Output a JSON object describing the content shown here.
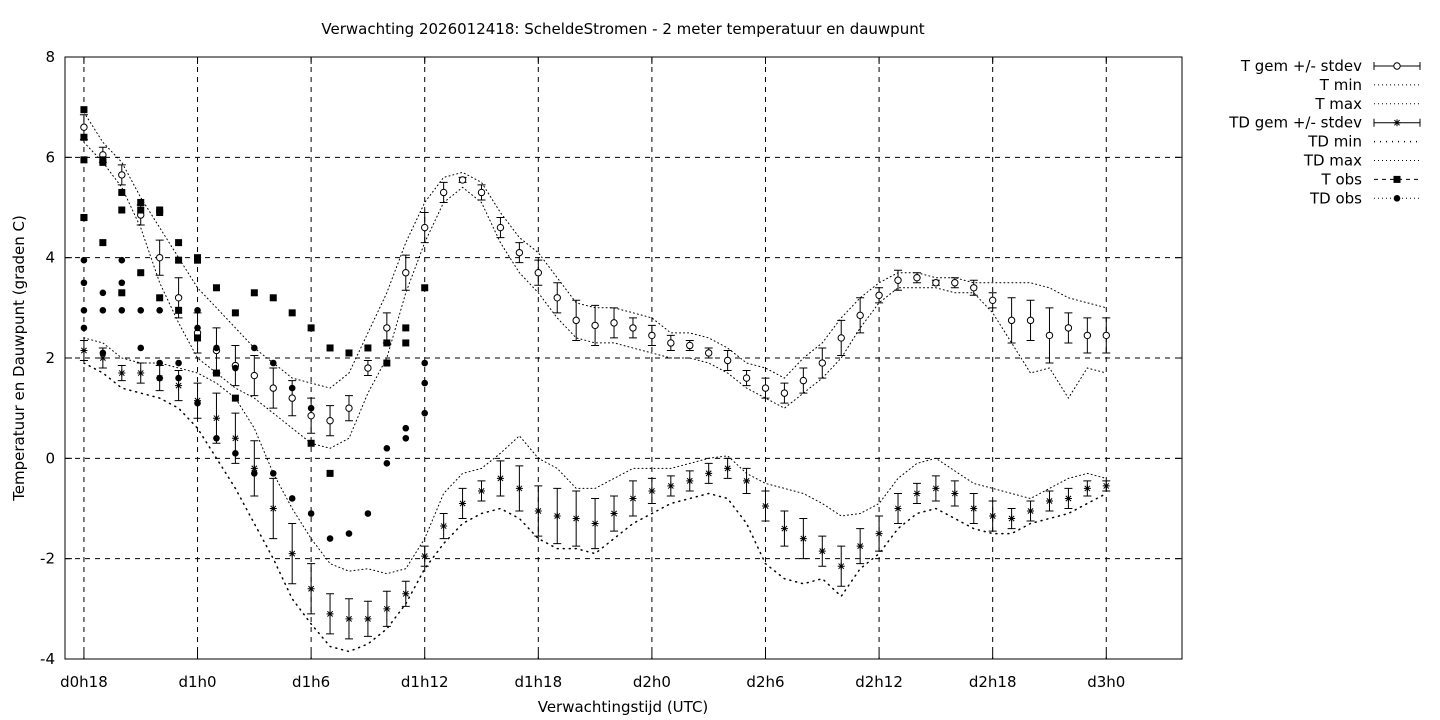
{
  "chart_data": {
    "type": "line",
    "title": "Verwachting 2026012418: ScheldeStromen - 2 meter temperatuur en dauwpunt",
    "xlabel": "Verwachtingstijd (UTC)",
    "ylabel": "Temperatuur en Dauwpunt (graden C)",
    "x_unit": "hours since d0h18",
    "xlim": [
      -1,
      58
    ],
    "ylim": [
      -4,
      8
    ],
    "x_ticks": [
      {
        "x": 0,
        "label": "d0h18"
      },
      {
        "x": 6,
        "label": "d1h0"
      },
      {
        "x": 12,
        "label": "d1h6"
      },
      {
        "x": 18,
        "label": "d1h12"
      },
      {
        "x": 24,
        "label": "d1h18"
      },
      {
        "x": 30,
        "label": "d2h0"
      },
      {
        "x": 36,
        "label": "d2h6"
      },
      {
        "x": 42,
        "label": "d2h12"
      },
      {
        "x": 48,
        "label": "d2h18"
      },
      {
        "x": 54,
        "label": "d3h0"
      }
    ],
    "y_ticks": [
      {
        "y": -4,
        "label": "-4"
      },
      {
        "y": -2,
        "label": "-2"
      },
      {
        "y": 0,
        "label": "0"
      },
      {
        "y": 2,
        "label": "2"
      },
      {
        "y": 4,
        "label": "4"
      },
      {
        "y": 6,
        "label": "6"
      },
      {
        "y": 8,
        "label": "8"
      }
    ],
    "grid": true,
    "legend_position": "outside-right-top",
    "legend": [
      {
        "label": "T gem +/- stdev",
        "style": "errorbar-circle"
      },
      {
        "label": "T min",
        "style": "dotted"
      },
      {
        "label": "T max",
        "style": "dotted"
      },
      {
        "label": "TD gem +/- stdev",
        "style": "errorbar-star"
      },
      {
        "label": "TD min",
        "style": "dotted-sparse"
      },
      {
        "label": "TD max",
        "style": "dotted"
      },
      {
        "label": "T obs",
        "style": "dashed-square"
      },
      {
        "label": "TD obs",
        "style": "dotted-dot"
      }
    ],
    "series": [
      {
        "name": "T gem +/- stdev",
        "x": [
          0,
          1,
          2,
          3,
          4,
          5,
          6,
          7,
          8,
          9,
          10,
          11,
          12,
          13,
          14,
          15,
          16,
          17,
          18,
          19,
          20,
          21,
          22,
          23,
          24,
          25,
          26,
          27,
          28,
          29,
          30,
          31,
          32,
          33,
          34,
          35,
          36,
          37,
          38,
          39,
          40,
          41,
          42,
          43,
          44,
          45,
          46,
          47,
          48,
          49,
          50,
          51,
          52,
          53,
          54
        ],
        "y": [
          6.6,
          6.05,
          5.65,
          4.85,
          4.0,
          3.2,
          2.5,
          2.15,
          1.85,
          1.65,
          1.4,
          1.2,
          0.85,
          0.75,
          1.0,
          1.8,
          2.6,
          3.7,
          4.6,
          5.3,
          5.55,
          5.3,
          4.6,
          4.1,
          3.7,
          3.2,
          2.75,
          2.65,
          2.7,
          2.6,
          2.45,
          2.3,
          2.25,
          2.1,
          1.95,
          1.6,
          1.4,
          1.3,
          1.55,
          1.9,
          2.4,
          2.85,
          3.25,
          3.55,
          3.6,
          3.5,
          3.5,
          3.4,
          3.15,
          2.75,
          2.75,
          2.45,
          2.6,
          2.45,
          2.45
        ],
        "stdev": [
          0.25,
          0.15,
          0.2,
          0.2,
          0.35,
          0.4,
          0.4,
          0.45,
          0.4,
          0.4,
          0.4,
          0.35,
          0.35,
          0.3,
          0.25,
          0.15,
          0.3,
          0.35,
          0.3,
          0.2,
          0.05,
          0.15,
          0.2,
          0.2,
          0.25,
          0.3,
          0.4,
          0.4,
          0.3,
          0.2,
          0.2,
          0.15,
          0.1,
          0.1,
          0.2,
          0.15,
          0.2,
          0.2,
          0.25,
          0.3,
          0.35,
          0.35,
          0.15,
          0.2,
          0.1,
          0.05,
          0.1,
          0.15,
          0.15,
          0.45,
          0.4,
          0.55,
          0.3,
          0.35,
          0.35
        ]
      },
      {
        "name": "T min",
        "x": [
          0,
          1,
          2,
          3,
          4,
          5,
          6,
          7,
          8,
          9,
          10,
          11,
          12,
          13,
          14,
          15,
          16,
          17,
          18,
          19,
          20,
          21,
          22,
          23,
          24,
          25,
          26,
          27,
          28,
          29,
          30,
          31,
          32,
          33,
          34,
          35,
          36,
          37,
          38,
          39,
          40,
          41,
          42,
          43,
          44,
          45,
          46,
          47,
          48,
          49,
          50,
          51,
          52,
          53,
          54
        ],
        "y": [
          6.3,
          5.9,
          5.4,
          4.6,
          3.5,
          2.7,
          2.0,
          1.7,
          1.4,
          1.2,
          0.9,
          0.6,
          0.3,
          0.2,
          0.4,
          1.3,
          2.0,
          3.3,
          4.3,
          5.1,
          5.4,
          5.1,
          4.3,
          3.7,
          3.3,
          2.8,
          2.4,
          2.3,
          2.3,
          2.2,
          2.1,
          2.0,
          2.0,
          1.9,
          1.7,
          1.4,
          1.2,
          1.0,
          1.3,
          1.6,
          2.0,
          2.6,
          3.1,
          3.4,
          3.4,
          3.4,
          3.3,
          3.3,
          2.9,
          2.3,
          1.7,
          1.8,
          1.2,
          1.8,
          1.7
        ]
      },
      {
        "name": "T max",
        "x": [
          0,
          1,
          2,
          3,
          4,
          5,
          6,
          7,
          8,
          9,
          10,
          11,
          12,
          13,
          14,
          15,
          16,
          17,
          18,
          19,
          20,
          21,
          22,
          23,
          24,
          25,
          26,
          27,
          28,
          29,
          30,
          31,
          32,
          33,
          34,
          35,
          36,
          37,
          38,
          39,
          40,
          41,
          42,
          43,
          44,
          45,
          46,
          47,
          48,
          49,
          50,
          51,
          52,
          53,
          54
        ],
        "y": [
          6.9,
          6.3,
          5.9,
          5.2,
          4.6,
          4.0,
          3.4,
          3.0,
          2.6,
          2.2,
          1.9,
          1.6,
          1.5,
          1.4,
          1.7,
          2.5,
          3.3,
          4.3,
          5.1,
          5.6,
          5.7,
          5.5,
          4.9,
          4.4,
          4.1,
          3.6,
          3.1,
          3.0,
          3.0,
          2.9,
          2.8,
          2.5,
          2.5,
          2.4,
          2.2,
          1.9,
          1.8,
          1.6,
          2.0,
          2.3,
          2.8,
          3.2,
          3.5,
          3.7,
          3.7,
          3.6,
          3.6,
          3.5,
          3.5,
          3.5,
          3.5,
          3.4,
          3.2,
          3.1,
          3.0
        ]
      },
      {
        "name": "TD gem +/- stdev",
        "x": [
          0,
          1,
          2,
          3,
          4,
          5,
          6,
          7,
          8,
          9,
          10,
          11,
          12,
          13,
          14,
          15,
          16,
          17,
          18,
          19,
          20,
          21,
          22,
          23,
          24,
          25,
          26,
          27,
          28,
          29,
          30,
          31,
          32,
          33,
          34,
          35,
          36,
          37,
          38,
          39,
          40,
          41,
          42,
          43,
          44,
          45,
          46,
          47,
          48,
          49,
          50,
          51,
          52,
          53,
          54
        ],
        "y": [
          2.15,
          2.0,
          1.7,
          1.7,
          1.6,
          1.45,
          1.15,
          0.8,
          0.4,
          -0.2,
          -1.0,
          -1.9,
          -2.6,
          -3.1,
          -3.2,
          -3.2,
          -3.0,
          -2.7,
          -1.95,
          -1.35,
          -0.9,
          -0.65,
          -0.4,
          -0.6,
          -1.05,
          -1.15,
          -1.2,
          -1.3,
          -1.1,
          -0.8,
          -0.65,
          -0.55,
          -0.45,
          -0.3,
          -0.2,
          -0.45,
          -0.95,
          -1.4,
          -1.6,
          -1.85,
          -2.15,
          -1.75,
          -1.5,
          -1.0,
          -0.7,
          -0.6,
          -0.7,
          -1.0,
          -1.15,
          -1.2,
          -1.05,
          -0.85,
          -0.8,
          -0.6,
          -0.55
        ],
        "stdev": [
          0.2,
          0.2,
          0.15,
          0.2,
          0.25,
          0.3,
          0.35,
          0.5,
          0.5,
          0.55,
          0.6,
          0.6,
          0.5,
          0.4,
          0.4,
          0.35,
          0.35,
          0.25,
          0.2,
          0.25,
          0.3,
          0.2,
          0.35,
          0.45,
          0.5,
          0.55,
          0.55,
          0.5,
          0.35,
          0.35,
          0.25,
          0.2,
          0.2,
          0.2,
          0.2,
          0.25,
          0.3,
          0.35,
          0.4,
          0.3,
          0.4,
          0.35,
          0.35,
          0.3,
          0.2,
          0.25,
          0.25,
          0.3,
          0.3,
          0.2,
          0.2,
          0.2,
          0.2,
          0.15,
          0.1
        ]
      },
      {
        "name": "TD min",
        "x": [
          0,
          1,
          2,
          3,
          4,
          5,
          6,
          7,
          8,
          9,
          10,
          11,
          12,
          13,
          14,
          15,
          16,
          17,
          18,
          19,
          20,
          21,
          22,
          23,
          24,
          25,
          26,
          27,
          28,
          29,
          30,
          31,
          32,
          33,
          34,
          35,
          36,
          37,
          38,
          39,
          40,
          41,
          42,
          43,
          44,
          45,
          46,
          47,
          48,
          49,
          50,
          51,
          52,
          53,
          54
        ],
        "y": [
          1.9,
          1.7,
          1.4,
          1.3,
          1.2,
          1.0,
          0.6,
          0.0,
          -0.6,
          -1.3,
          -2.0,
          -2.8,
          -3.3,
          -3.75,
          -3.85,
          -3.7,
          -3.4,
          -2.9,
          -2.2,
          -1.7,
          -1.3,
          -1.1,
          -1.0,
          -1.2,
          -1.6,
          -1.8,
          -1.8,
          -1.9,
          -1.6,
          -1.3,
          -1.1,
          -0.9,
          -0.8,
          -0.7,
          -0.8,
          -1.3,
          -2.1,
          -2.4,
          -2.5,
          -2.4,
          -2.75,
          -2.2,
          -1.9,
          -1.4,
          -1.1,
          -1.0,
          -1.2,
          -1.4,
          -1.5,
          -1.5,
          -1.3,
          -1.2,
          -1.1,
          -0.9,
          -0.7
        ]
      },
      {
        "name": "TD max",
        "x": [
          0,
          1,
          2,
          3,
          4,
          5,
          6,
          7,
          8,
          9,
          10,
          11,
          12,
          13,
          14,
          15,
          16,
          17,
          18,
          19,
          20,
          21,
          22,
          23,
          24,
          25,
          26,
          27,
          28,
          29,
          30,
          31,
          32,
          33,
          34,
          35,
          36,
          37,
          38,
          39,
          40,
          41,
          42,
          43,
          44,
          45,
          46,
          47,
          48,
          49,
          50,
          51,
          52,
          53,
          54
        ],
        "y": [
          2.4,
          2.3,
          2.0,
          1.9,
          1.9,
          1.8,
          1.7,
          1.5,
          1.2,
          0.6,
          -0.3,
          -1.0,
          -1.6,
          -2.1,
          -2.25,
          -2.2,
          -2.3,
          -2.2,
          -1.6,
          -0.7,
          -0.3,
          -0.2,
          0.1,
          0.45,
          0.0,
          -0.2,
          -0.6,
          -0.6,
          -0.4,
          -0.2,
          -0.2,
          -0.2,
          -0.1,
          0.0,
          0.05,
          -0.3,
          -0.5,
          -0.6,
          -0.7,
          -0.9,
          -1.15,
          -1.1,
          -0.9,
          -0.4,
          -0.1,
          0.0,
          -0.25,
          -0.5,
          -0.6,
          -0.7,
          -0.8,
          -0.6,
          -0.4,
          -0.3,
          -0.4
        ]
      },
      {
        "name": "T obs",
        "x": [
          0,
          0,
          0,
          0,
          0,
          1,
          1,
          1,
          2,
          2,
          2,
          3,
          3,
          3,
          4,
          4,
          4,
          5,
          5,
          5,
          6,
          6,
          6,
          7,
          7,
          8,
          8,
          9,
          10,
          11,
          12,
          12,
          13,
          13,
          14,
          15,
          16,
          16,
          17,
          17,
          18
        ],
        "y": [
          6.95,
          6.4,
          5.95,
          4.8,
          4.8,
          5.95,
          5.9,
          4.3,
          5.3,
          4.95,
          3.3,
          5.1,
          4.95,
          3.7,
          4.95,
          4.9,
          3.2,
          4.3,
          3.95,
          2.95,
          4.0,
          3.95,
          2.4,
          3.4,
          1.7,
          2.9,
          1.2,
          3.3,
          3.2,
          2.9,
          2.6,
          0.3,
          2.2,
          -0.3,
          2.1,
          2.2,
          2.3,
          1.9,
          2.3,
          2.6,
          3.4
        ]
      },
      {
        "name": "TD obs",
        "x": [
          0,
          0,
          0,
          0,
          1,
          1,
          1,
          2,
          2,
          2,
          3,
          3,
          4,
          4,
          4,
          5,
          5,
          5,
          6,
          6,
          6,
          7,
          7,
          8,
          8,
          9,
          9,
          10,
          10,
          11,
          11,
          12,
          12,
          13,
          14,
          15,
          16,
          16,
          17,
          17,
          18,
          18,
          18
        ],
        "y": [
          3.95,
          3.5,
          2.95,
          2.6,
          3.3,
          2.95,
          2.1,
          3.95,
          3.5,
          2.95,
          2.95,
          2.2,
          2.95,
          1.9,
          1.6,
          2.95,
          1.9,
          1.6,
          2.95,
          2.6,
          1.1,
          2.2,
          0.4,
          1.8,
          0.1,
          2.2,
          -0.3,
          1.9,
          -0.3,
          1.4,
          -0.8,
          1.0,
          -1.1,
          -1.6,
          -1.5,
          -1.1,
          0.2,
          -0.1,
          0.6,
          0.4,
          1.9,
          1.5,
          0.9
        ]
      }
    ]
  }
}
